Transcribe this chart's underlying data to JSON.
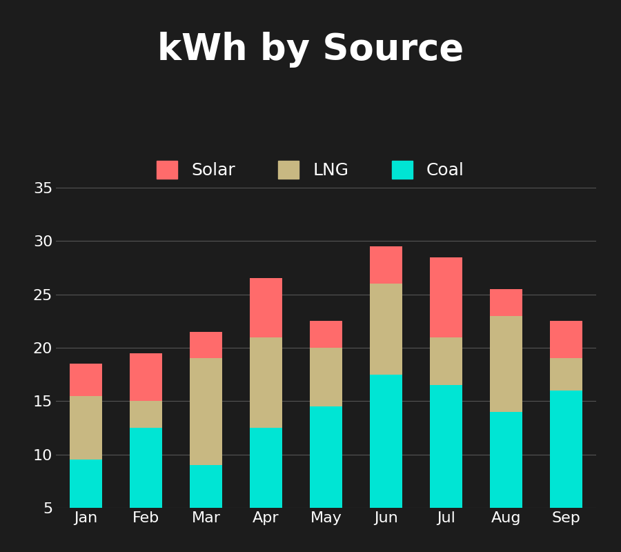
{
  "months": [
    "Jan",
    "Feb",
    "Mar",
    "Apr",
    "May",
    "Jun",
    "Jul",
    "Aug",
    "Sep"
  ],
  "coal": [
    9.5,
    12.5,
    9.0,
    12.5,
    14.5,
    17.5,
    16.5,
    14.0,
    16.0
  ],
  "lng": [
    6.0,
    2.5,
    10.0,
    8.5,
    5.5,
    8.5,
    4.5,
    9.0,
    3.0
  ],
  "solar": [
    3.0,
    4.5,
    2.5,
    5.5,
    2.5,
    3.5,
    7.5,
    2.5,
    3.5
  ],
  "coal_color": "#00E5D4",
  "lng_color": "#C8B882",
  "solar_color": "#FF6B6B",
  "bg_color": "#1C1C1C",
  "text_color": "#FFFFFF",
  "grid_color": "#555555",
  "title": "kWh by Source",
  "ylim_min": 5,
  "ylim_max": 35,
  "yticks": [
    5,
    10,
    15,
    20,
    25,
    30,
    35
  ],
  "title_fontsize": 38,
  "tick_fontsize": 16,
  "legend_fontsize": 18,
  "bar_width": 0.55
}
